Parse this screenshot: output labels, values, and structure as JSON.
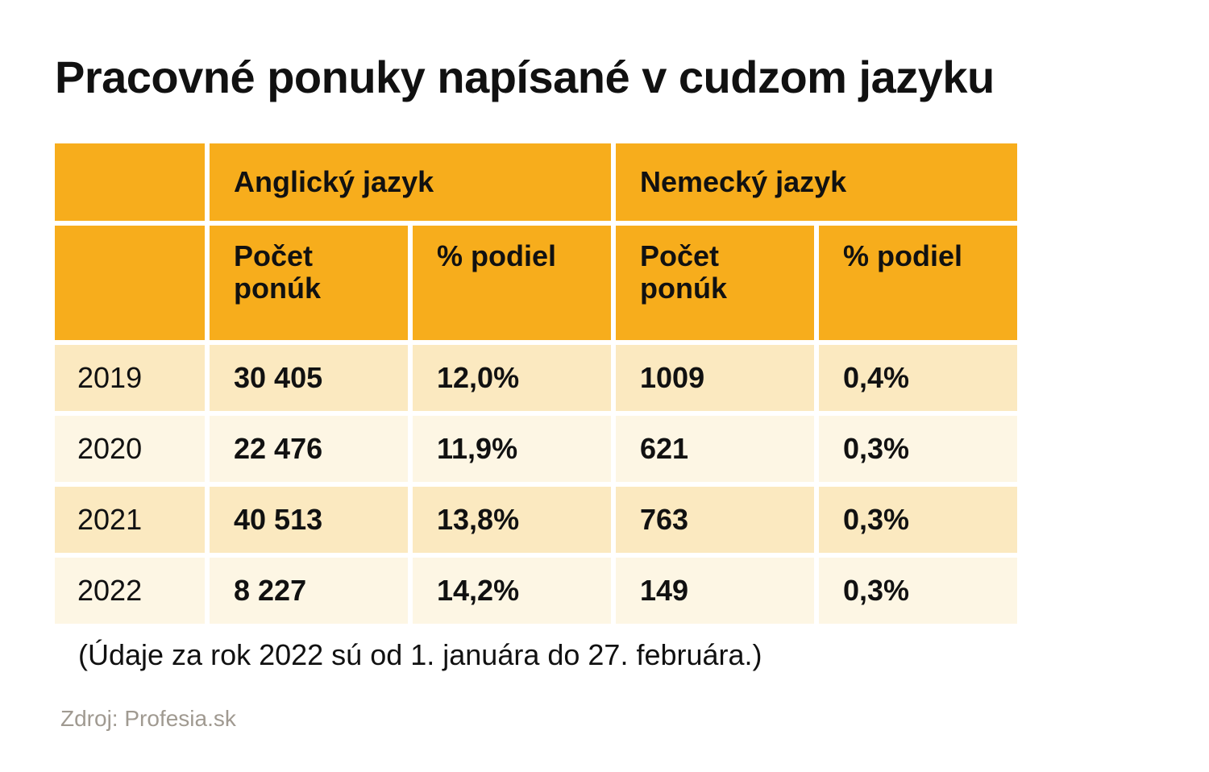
{
  "title": "Pracovné ponuky napísané v cudzom jazyku",
  "chart_data": {
    "type": "table",
    "title": "Pracovné ponuky napísané v cudzom jazyku",
    "group_headers": [
      "Anglický jazyk",
      "Nemecký jazyk"
    ],
    "column_headers": [
      "Počet ponúk",
      "% podiel",
      "Počet ponúk",
      "% podiel"
    ],
    "rows": [
      {
        "year": "2019",
        "cells": [
          "30 405",
          "12,0%",
          "1009",
          "0,4%"
        ]
      },
      {
        "year": "2020",
        "cells": [
          "22 476",
          "11,9%",
          "621",
          "0,3%"
        ]
      },
      {
        "year": "2021",
        "cells": [
          "40 513",
          "13,8%",
          "763",
          "0,3%"
        ]
      },
      {
        "year": "2022",
        "cells": [
          "8 227",
          "14,2%",
          "149",
          "0,3%"
        ]
      }
    ]
  },
  "note": "(Údaje za rok 2022 sú od 1. januára do 27. februára.)",
  "source": "Zdroj: Profesia.sk",
  "colors": {
    "header": "#f7ad1c",
    "row_odd": "#fbe9c0",
    "row_even": "#fdf6e4",
    "source_text": "#a09a91"
  }
}
